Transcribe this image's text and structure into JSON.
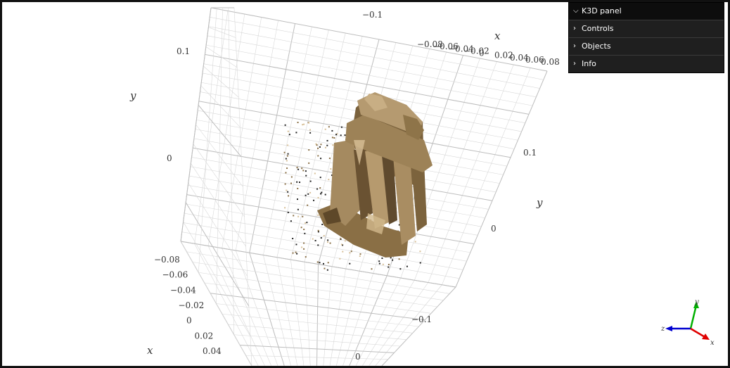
{
  "panel": {
    "title": "K3D panel",
    "items": [
      "Controls",
      "Objects",
      "Info"
    ]
  },
  "axes": {
    "x_name": "x",
    "y_name": "y",
    "top_x_ticks": [
      "−0.08",
      "−0.06",
      "−0.04",
      "−0.02",
      "0",
      "0.02",
      "0.04",
      "0.06",
      "0.08"
    ],
    "left_y_ticks": [
      "0.1",
      "0"
    ],
    "right_y_ticks": [
      "0.1",
      "0"
    ],
    "bottom_x_ticks": [
      "−0.08",
      "−0.06",
      "−0.04",
      "−0.02",
      "0",
      "0.02",
      "0.04"
    ],
    "far_tick": "−0.1",
    "near_tick": "−0.1",
    "near_zero": "0"
  },
  "gizmo": {
    "x": "x",
    "y": "y",
    "z": "z"
  },
  "colors": {
    "grid": "#d8d8d8",
    "grid_major": "#bdbdbd",
    "ruin_dark": "#6b5434",
    "ruin_mid": "#9c8258",
    "ruin_light": "#c9b088",
    "gizmo_x": "#e00000",
    "gizmo_y": "#00b000",
    "gizmo_z": "#0000d0"
  }
}
